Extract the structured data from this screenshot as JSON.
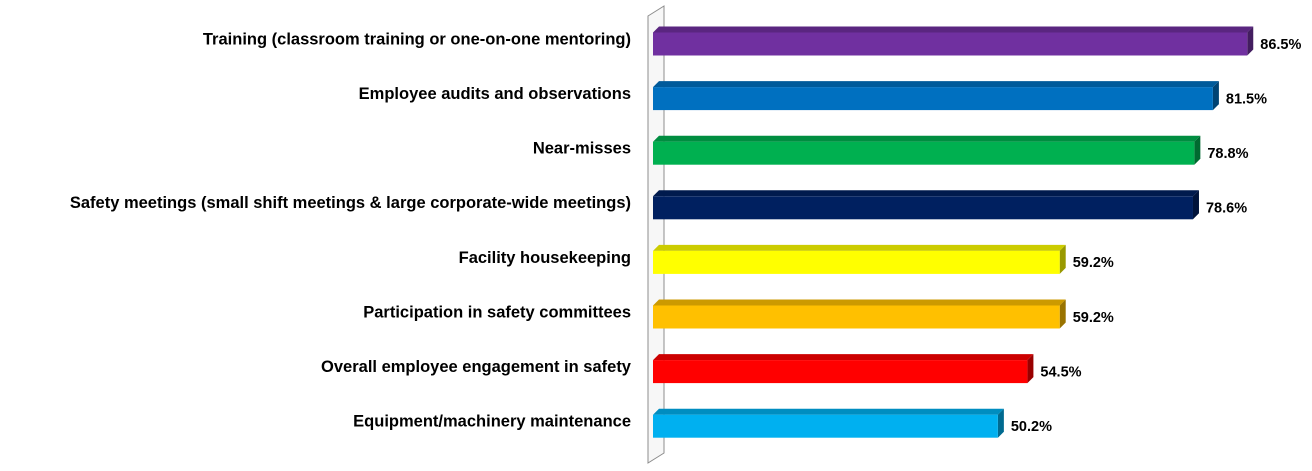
{
  "chart_data": {
    "type": "bar",
    "orientation": "horizontal",
    "style": "3d",
    "categories": [
      "Training (classroom training or one-on-one mentoring)",
      "Employee audits and observations",
      "Near-misses",
      "Safety meetings (small shift meetings & large corporate-wide meetings)",
      "Facility housekeeping",
      "Participation in safety committees",
      "Overall employee engagement in safety",
      "Equipment/machinery maintenance"
    ],
    "values": [
      86.5,
      81.5,
      78.8,
      78.6,
      59.2,
      59.2,
      54.5,
      50.2
    ],
    "value_labels": [
      "86.5%",
      "81.5%",
      "78.8%",
      "78.6%",
      "59.2%",
      "59.2%",
      "54.5%",
      "50.2%"
    ],
    "colors": [
      "#7030A0",
      "#0070C0",
      "#00B050",
      "#002060",
      "#FFFF00",
      "#FFC000",
      "#FF0000",
      "#00B0F0"
    ],
    "xlim": [
      0,
      100
    ],
    "grid": false,
    "legend": "none"
  }
}
